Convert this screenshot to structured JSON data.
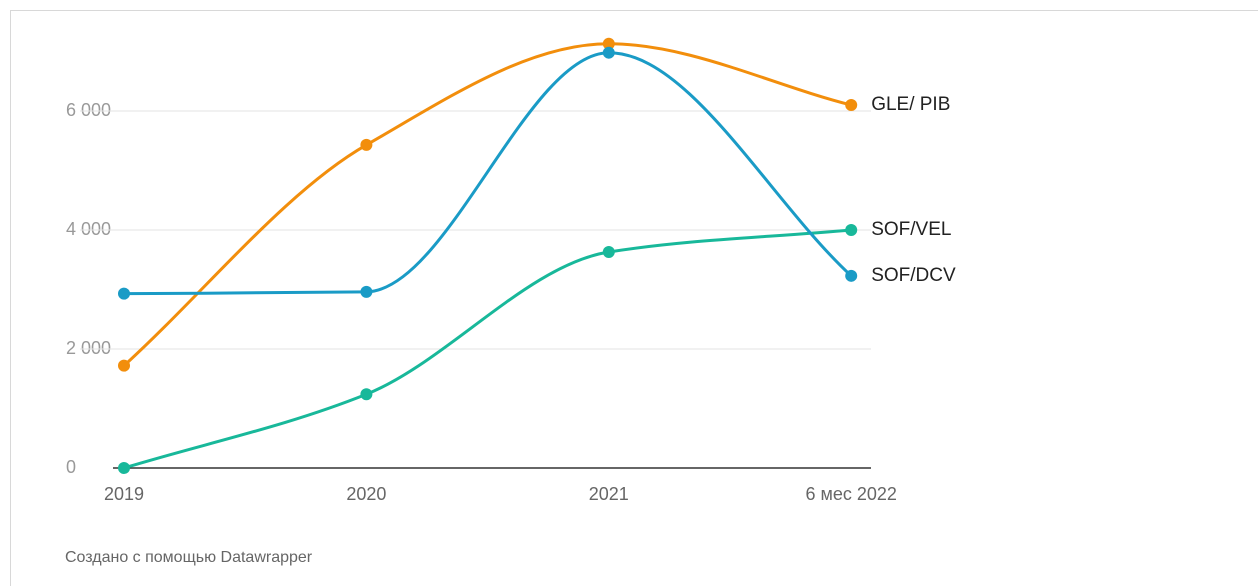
{
  "chart_data": {
    "type": "line",
    "categories": [
      "2019",
      "2020",
      "2021",
      "6 мес 2022"
    ],
    "series": [
      {
        "name": "GLE/ PIB",
        "color": "#f28e0c",
        "values": [
          1720,
          5430,
          7130,
          6100
        ]
      },
      {
        "name": "SOF/VEL",
        "color": "#18b89a",
        "values": [
          0,
          1240,
          3630,
          4000
        ]
      },
      {
        "name": "SOF/DCV",
        "color": "#1a9bc6",
        "values": [
          2930,
          2960,
          6980,
          3230
        ]
      }
    ],
    "ylim": [
      0,
      7400
    ],
    "yticks": [
      0,
      {
        "value": 2000,
        "label": "2 000"
      },
      {
        "value": 4000,
        "label": "4 000"
      },
      {
        "value": 6000,
        "label": "6 000"
      }
    ],
    "grid": true,
    "footer": "Создано с помощью Datawrapper"
  }
}
